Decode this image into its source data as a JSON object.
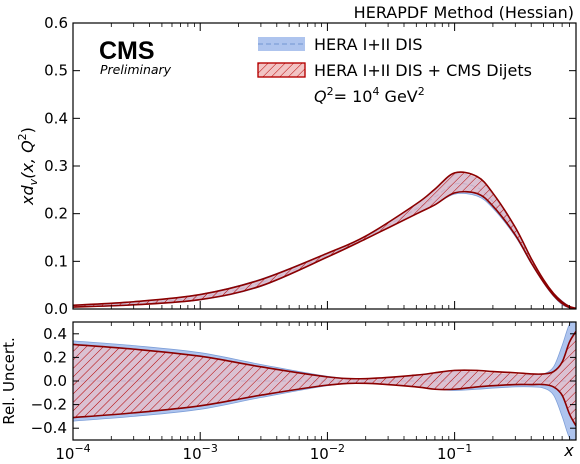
{
  "chart_data": {
    "type": "area",
    "title": "HERAPDF Method (Hessian)",
    "experiment": "CMS",
    "experiment_status": "Preliminary",
    "legend": [
      {
        "label": "HERA I+II DIS",
        "fill": "#aec4ee",
        "line": "#7e9fd8",
        "style": "dashed"
      },
      {
        "label": "HERA I+II DIS + CMS Dijets",
        "fill": "#f2c4c4",
        "line": "#b50000",
        "style": "hatched"
      }
    ],
    "annotation": {
      "prefix": "Q",
      "sup1": "2",
      "mid": "= 10",
      "sup2": "4",
      "unit": " GeV",
      "sup3": "2"
    },
    "ylabel": {
      "a": "xd",
      "sub": "v",
      "b": "(x, Q",
      "sup": "2",
      "c": ")"
    },
    "ratio_ylabel": "Rel. Uncert.",
    "xlabel": "x",
    "xscale": "log",
    "xlim": [
      0.0001,
      0.9
    ],
    "ylim": [
      0,
      0.6
    ],
    "ratio_ylim": [
      -0.5,
      0.5
    ],
    "x_ticks": [
      {
        "base": "10",
        "exp": "−4",
        "value": 0.0001
      },
      {
        "base": "10",
        "exp": "−3",
        "value": 0.001
      },
      {
        "base": "10",
        "exp": "−2",
        "value": 0.01
      },
      {
        "base": "10",
        "exp": "−1",
        "value": 0.1
      }
    ],
    "y_ticks": [
      "0.0",
      "0.1",
      "0.2",
      "0.3",
      "0.4",
      "0.5",
      "0.6"
    ],
    "ratio_y_ticks": [
      "−0.4",
      "−0.2",
      "0.0",
      "0.2",
      "0.4"
    ],
    "x": [
      0.0001,
      0.0003,
      0.001,
      0.003,
      0.01,
      0.02,
      0.05,
      0.07,
      0.1,
      0.15,
      0.2,
      0.3,
      0.4,
      0.5,
      0.6,
      0.7,
      0.8,
      0.9
    ],
    "series": [
      {
        "name": "HERA I+II DIS",
        "central": [
          0.006,
          0.012,
          0.025,
          0.055,
          0.113,
          0.15,
          0.21,
          0.235,
          0.262,
          0.255,
          0.225,
          0.16,
          0.1,
          0.058,
          0.03,
          0.013,
          0.004,
          0.001
        ],
        "rel_unc_lo": [
          -0.34,
          -0.3,
          -0.24,
          -0.14,
          -0.04,
          -0.02,
          -0.05,
          -0.07,
          -0.08,
          -0.07,
          -0.06,
          -0.05,
          -0.05,
          -0.06,
          -0.12,
          -0.3,
          -0.48,
          -0.5
        ],
        "rel_unc_hi": [
          0.34,
          0.3,
          0.24,
          0.14,
          0.04,
          0.02,
          0.05,
          0.07,
          0.08,
          0.07,
          0.06,
          0.05,
          0.05,
          0.06,
          0.12,
          0.3,
          0.48,
          0.5
        ]
      },
      {
        "name": "HERA I+II DIS + CMS Dijets",
        "central": [
          0.006,
          0.012,
          0.025,
          0.055,
          0.113,
          0.15,
          0.21,
          0.235,
          0.262,
          0.255,
          0.225,
          0.16,
          0.1,
          0.058,
          0.03,
          0.013,
          0.004,
          0.001
        ],
        "rel_unc_lo": [
          -0.31,
          -0.27,
          -0.21,
          -0.12,
          -0.035,
          -0.02,
          -0.05,
          -0.07,
          -0.07,
          -0.05,
          -0.04,
          -0.03,
          -0.03,
          -0.03,
          -0.05,
          -0.12,
          -0.28,
          -0.38
        ],
        "rel_unc_hi": [
          0.31,
          0.27,
          0.21,
          0.12,
          0.035,
          0.02,
          0.05,
          0.07,
          0.09,
          0.09,
          0.08,
          0.07,
          0.06,
          0.06,
          0.08,
          0.16,
          0.33,
          0.42
        ]
      }
    ],
    "grid": false
  }
}
